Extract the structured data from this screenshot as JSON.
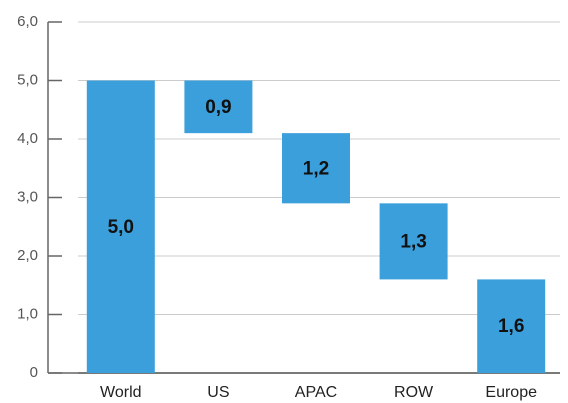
{
  "chart_data": {
    "type": "waterfall",
    "categories": [
      "World",
      "US",
      "APAC",
      "ROW",
      "Europe"
    ],
    "values": [
      5.0,
      0.9,
      1.2,
      1.3,
      1.6
    ],
    "value_labels": [
      "5,0",
      "0,9",
      "1,2",
      "1,3",
      "1,6"
    ],
    "color": "#3a9fdb",
    "ylim": [
      0,
      6
    ],
    "yticks": [
      {
        "value": 0,
        "label": "0"
      },
      {
        "value": 1,
        "label": "1,0"
      },
      {
        "value": 2,
        "label": "2,0"
      },
      {
        "value": 3,
        "label": "3,0"
      },
      {
        "value": 4,
        "label": "4,0"
      },
      {
        "value": 5,
        "label": "5,0"
      },
      {
        "value": 6,
        "label": "6,0"
      }
    ],
    "grid": true
  }
}
